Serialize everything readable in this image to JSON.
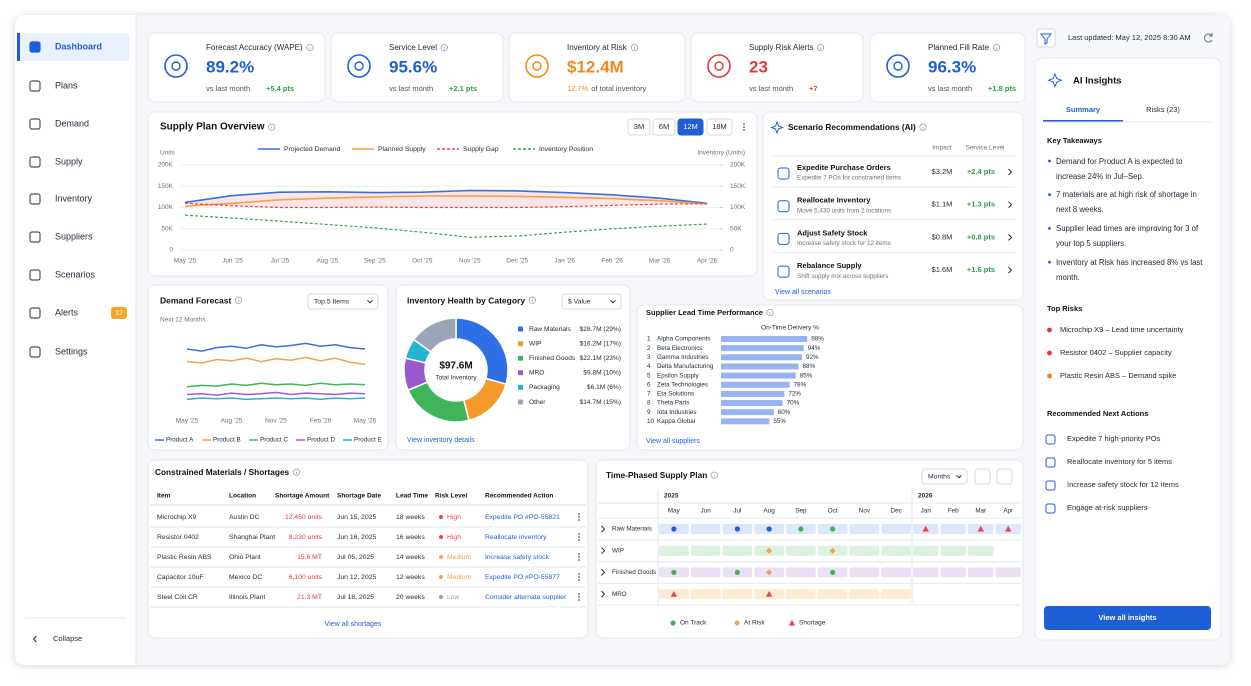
{
  "sidebar": {
    "active": 0,
    "collapse": "Collapse",
    "nav": [
      {
        "label": "Dashboard"
      },
      {
        "label": "Plans"
      },
      {
        "label": "Demand"
      },
      {
        "label": "Supply"
      },
      {
        "label": "Inventory"
      },
      {
        "label": "Suppliers"
      },
      {
        "label": "Scenarios"
      },
      {
        "label": "Alerts",
        "badge": 12
      },
      {
        "label": "Settings"
      }
    ]
  },
  "header": {
    "last_updated": "Last updated: May 12, 2025 8:30 AM"
  },
  "kpis": [
    {
      "label": "Forecast Accuracy (WAPE)",
      "value": "89.2%",
      "color": "#1f5fd6",
      "sub": "vs last month",
      "delta": "+5.4 pts",
      "delta_color": "#2e9d4a"
    },
    {
      "label": "Service Level",
      "value": "95.6%",
      "color": "#1f5fd6",
      "sub": "vs last month",
      "delta": "+2.1 pts",
      "delta_color": "#2e9d4a"
    },
    {
      "label": "Inventory at Risk",
      "value": "$12.4M",
      "color": "#f08a1c",
      "sub_highlight": "12.7%",
      "sub": "of total inventory"
    },
    {
      "label": "Supply Risk Alerts",
      "value": "23",
      "color": "#e5383b",
      "sub": "vs last month",
      "delta": "+7",
      "delta_color": "#e5383b"
    },
    {
      "label": "Planned Fill Rate",
      "value": "96.3%",
      "color": "#1f5fd6",
      "sub": "vs last month",
      "delta": "+1.8 pts",
      "delta_color": "#2e9d4a"
    }
  ],
  "supply_plan": {
    "title": "Supply Plan Overview",
    "ranges": [
      "3M",
      "6M",
      "12M",
      "18M"
    ],
    "active_range": 2,
    "chart": {
      "type": "line",
      "y_label": "Units",
      "y2_label": "Inventory (Units)",
      "grid": true,
      "categories": [
        "May '25",
        "Jun '25",
        "Jul '25",
        "Aug '25",
        "Sep '25",
        "Oct '25",
        "Nov '25",
        "Dec '25",
        "Jan '26",
        "Feb '26",
        "Mar '26",
        "Apr '26"
      ],
      "ylim": [
        0,
        200000
      ],
      "yticks": [
        0,
        {
          "value": 50000,
          "label": "50K"
        },
        {
          "value": 100000,
          "label": "100K"
        },
        {
          "value": 150000,
          "label": "150K"
        },
        {
          "value": 200000,
          "label": "200K"
        }
      ],
      "y2lim": [
        0,
        200000
      ],
      "y2ticks": [
        0,
        {
          "value": 50000,
          "label": "50K"
        },
        {
          "value": 100000,
          "label": "100K"
        },
        {
          "value": 150000,
          "label": "150K"
        },
        {
          "value": 200000,
          "label": "200K"
        }
      ],
      "series": [
        {
          "name": "Projected Demand",
          "color": "#3b6fe0",
          "style": "solid",
          "values": [
            112000,
            128000,
            136000,
            137000,
            135000,
            136000,
            140000,
            139000,
            135000,
            130000,
            122000,
            110000
          ]
        },
        {
          "name": "Planned Supply",
          "color": "#f5a04a",
          "style": "solid",
          "values": [
            103000,
            110000,
            118000,
            122000,
            125000,
            127000,
            127000,
            126000,
            124000,
            121000,
            116000,
            108000
          ]
        },
        {
          "name": "Supply Gap",
          "color": "#e5484d",
          "style": "dashed",
          "fill_to": 0,
          "values": [
            110000,
            104000,
            100000,
            100000,
            101000,
            100000,
            100000,
            100000,
            102000,
            105000,
            108000,
            109000
          ]
        },
        {
          "name": "Inventory Position",
          "color": "#34a853",
          "style": "dashed",
          "axis": "y2",
          "values": [
            82000,
            75000,
            68000,
            60000,
            52000,
            42000,
            30000,
            33000,
            42000,
            50000,
            56000,
            61000
          ]
        }
      ]
    }
  },
  "demand_forecast": {
    "title": "Demand Forecast",
    "selector": "Top 5 Items",
    "subtitle": "Next 12 Months",
    "chart": {
      "type": "line",
      "ylim": [
        0,
        100
      ],
      "categories": [
        "May '25",
        null,
        null,
        "Aug '25",
        null,
        null,
        "Nov '25",
        null,
        null,
        "Feb '26",
        null,
        null,
        "May '26"
      ],
      "series": [
        {
          "name": "Product A",
          "color": "#3b6fe0",
          "values": [
            80,
            77,
            82,
            84,
            81,
            86,
            83,
            85,
            88,
            84,
            86,
            82,
            80
          ]
        },
        {
          "name": "Product B",
          "color": "#f5a04a",
          "values": [
            62,
            60,
            65,
            63,
            67,
            62,
            66,
            64,
            68,
            63,
            67,
            61,
            58
          ]
        },
        {
          "name": "Product C",
          "color": "#3fb55a",
          "values": [
            26,
            28,
            27,
            30,
            28,
            31,
            29,
            30,
            28,
            31,
            29,
            30,
            29
          ]
        },
        {
          "name": "Product D",
          "color": "#a259d9",
          "values": [
            15,
            16,
            14,
            17,
            15,
            16,
            18,
            15,
            17,
            16,
            15,
            17,
            16
          ]
        },
        {
          "name": "Product E",
          "color": "#2bb3d3",
          "values": [
            8,
            10,
            9,
            10,
            8,
            9,
            10,
            9,
            10,
            8,
            10,
            9,
            10
          ]
        }
      ]
    }
  },
  "inventory_health": {
    "title": "Inventory Health by Category",
    "selector": "$ Value",
    "center_value": "$97.6M",
    "center_label": "Total Inventory",
    "link": "View inventory details",
    "chart": {
      "type": "donut",
      "categories": [
        "Raw Materials",
        "WIP",
        "Finished Goods",
        "MRO",
        "Packaging",
        "Other"
      ],
      "values": [
        28.7,
        16.2,
        22.1,
        9.8,
        6.1,
        14.7
      ],
      "value_labels": [
        "$28.7M (29%)",
        "$16.2M (17%)",
        "$22.1M (23%)",
        "$9.8M (10%)",
        "$6.1M (6%)",
        "$14.7M (15%)"
      ],
      "colors": [
        "#2f6fe6",
        "#f59a2a",
        "#3fb55a",
        "#9b59d0",
        "#22b5d0",
        "#9aa5b8"
      ]
    }
  },
  "supplier_lead_time": {
    "title": "Supplier Lead Time Performance",
    "axis_label": "On-Time Delivery %",
    "link": "View all suppliers",
    "chart": {
      "type": "bar",
      "orientation": "horizontal",
      "color": "#97b4f0",
      "xlim": [
        0,
        100
      ],
      "ranks": [
        1,
        2,
        3,
        4,
        5,
        6,
        7,
        8,
        9,
        10
      ],
      "categories": [
        "Alpha Components",
        "Beta Electronics",
        "Gamma Industries",
        "Delta Manufacturing",
        "Epsilon Supply",
        "Zeta Technologies",
        "Eta Solutions",
        "Theta Parts",
        "Iota Industries",
        "Kappa Global"
      ],
      "values": [
        98,
        94,
        92,
        88,
        85,
        78,
        72,
        70,
        60,
        55
      ],
      "value_labels": [
        "98%",
        "94%",
        "92%",
        "88%",
        "85%",
        "78%",
        "72%",
        "70%",
        "60%",
        "55%"
      ]
    }
  },
  "scenarios": {
    "title": "Scenario Recommendations (AI)",
    "headers": [
      "Impact",
      "Service Level"
    ],
    "link": "View all scenarios",
    "rows": [
      {
        "title": "Expedite Purchase Orders",
        "desc": "Expedite 7 POs for constrained items",
        "impact": "$3.2M",
        "service": "+2.4 pts"
      },
      {
        "title": "Reallocate Inventory",
        "desc": "Move 5,430 units from 2 locations",
        "impact": "$1.1M",
        "service": "+1.3 pts"
      },
      {
        "title": "Adjust Safety Stock",
        "desc": "Increase safety stock for 12 items",
        "impact": "$0.8M",
        "service": "+0.8 pts"
      },
      {
        "title": "Rebalance Supply",
        "desc": "Shift supply mix across suppliers",
        "impact": "$1.6M",
        "service": "+1.6 pts"
      }
    ]
  },
  "constrained": {
    "title": "Constrained Materials / Shortages",
    "link": "View all shortages",
    "columns": [
      "Item",
      "Location",
      "Shortage Amount",
      "Shortage Date",
      "Lead Time",
      "Risk Level",
      "Recommended Action"
    ],
    "rows": [
      [
        "Microchip X9",
        "Austin DC",
        "12,450 units",
        "Jun 15, 2025",
        "18 weeks",
        "High",
        "Expedite PO #PO-55821"
      ],
      [
        "Resistor 0402",
        "Shanghai Plant",
        "8,230 units",
        "Jun 16, 2025",
        "16 weeks",
        "High",
        "Reallocate inventory"
      ],
      [
        "Plastic Resin ABS",
        "Ohio Plant",
        "15.6 MT",
        "Jul 05, 2025",
        "14 weeks",
        "Medium",
        "Increase safety stock"
      ],
      [
        "Capacitor 10uF",
        "Mexico DC",
        "6,100 units",
        "Jun 12, 2025",
        "12 weeks",
        "Medium",
        "Expedite PO #PO-55877"
      ],
      [
        "Steel Coil CR",
        "Illinois Plant",
        "21.3 MT",
        "Jul 18, 2025",
        "20 weeks",
        "Low",
        "Consider alternate supplier"
      ]
    ],
    "risk_colors": [
      "#e5484d",
      "#e5484d",
      "#f5a04a",
      "#f5a04a",
      "#9aa1ad"
    ]
  },
  "time_phased": {
    "title": "Time-Phased Supply Plan",
    "selector": "Months",
    "years": [
      {
        "label": "2025",
        "months": [
          "May",
          "Jun",
          "Jul",
          "Aug",
          "Sep",
          "Oct",
          "Nov",
          "Dec"
        ]
      },
      {
        "label": "2026",
        "months": [
          "Jan",
          "Feb",
          "Mar",
          "Apr"
        ]
      }
    ],
    "rows": [
      {
        "label": "Raw Materials",
        "color": "#dce7fb",
        "bar_months": 12,
        "cells": [
          "planned",
          null,
          "planned",
          "planned",
          "on_track",
          "on_track",
          null,
          null,
          "shortage",
          null,
          "shortage",
          "shortage"
        ]
      },
      {
        "label": "WIP",
        "color": "#dcf1df",
        "bar_months": 11,
        "cells": [
          null,
          null,
          null,
          "at_risk",
          null,
          "at_risk",
          null,
          null,
          null,
          null,
          null,
          null
        ]
      },
      {
        "label": "Finished Goods",
        "color": "#ebe1f7",
        "bar_months": 12,
        "cells": [
          "on_track",
          null,
          "on_track",
          "at_risk",
          null,
          "on_track",
          null,
          null,
          null,
          null,
          null,
          null
        ]
      },
      {
        "label": "MRO",
        "color": "#fdebd3",
        "bar_months": 8,
        "cells": [
          "shortage",
          null,
          null,
          "shortage",
          null,
          null,
          null,
          null,
          null,
          null,
          null,
          null
        ]
      }
    ],
    "statuses": {
      "planned": {
        "color": "#1f5fd6",
        "shape": "circle"
      },
      "on_track": {
        "label": "On Track",
        "color": "#3fb55a",
        "shape": "circle"
      },
      "at_risk": {
        "label": "At Risk",
        "color": "#f5a04a",
        "shape": "diamond"
      },
      "shortage": {
        "label": "Shortage",
        "color": "#e5484d",
        "shape": "triangle"
      }
    },
    "legend": [
      "on_track",
      "at_risk",
      "shortage"
    ]
  },
  "ai_insights": {
    "title": "AI Insights",
    "tabs": [
      "Summary",
      "Risks (23)"
    ],
    "active_tab": 0,
    "key_takeaways": {
      "title": "Key Takeaways",
      "items": [
        "Demand for Product A is expected to increase 24% in Jul–Sep.",
        "7 materials are at high risk of shortage in next 8 weeks.",
        "Supplier lead times are improving for 3 of your top 5 suppliers.",
        "Inventory at Risk has increased 8% vs last month."
      ]
    },
    "top_risks": {
      "title": "Top Risks",
      "items": [
        {
          "text": "Microchip X9 – Lead time uncertainty",
          "color": "#e5383b"
        },
        {
          "text": "Resistor 0402 – Supplier capacity",
          "color": "#e5383b"
        },
        {
          "text": "Plastic Resin ABS – Demand spike",
          "color": "#f08a1c"
        }
      ]
    },
    "next_actions": {
      "title": "Recommended Next Actions",
      "items": [
        "Expedite 7 high-priority POs",
        "Reallocate inventory for 5 items",
        "Increase safety stock for 12 items",
        "Engage at-risk suppliers"
      ]
    },
    "button": "View all insights"
  }
}
